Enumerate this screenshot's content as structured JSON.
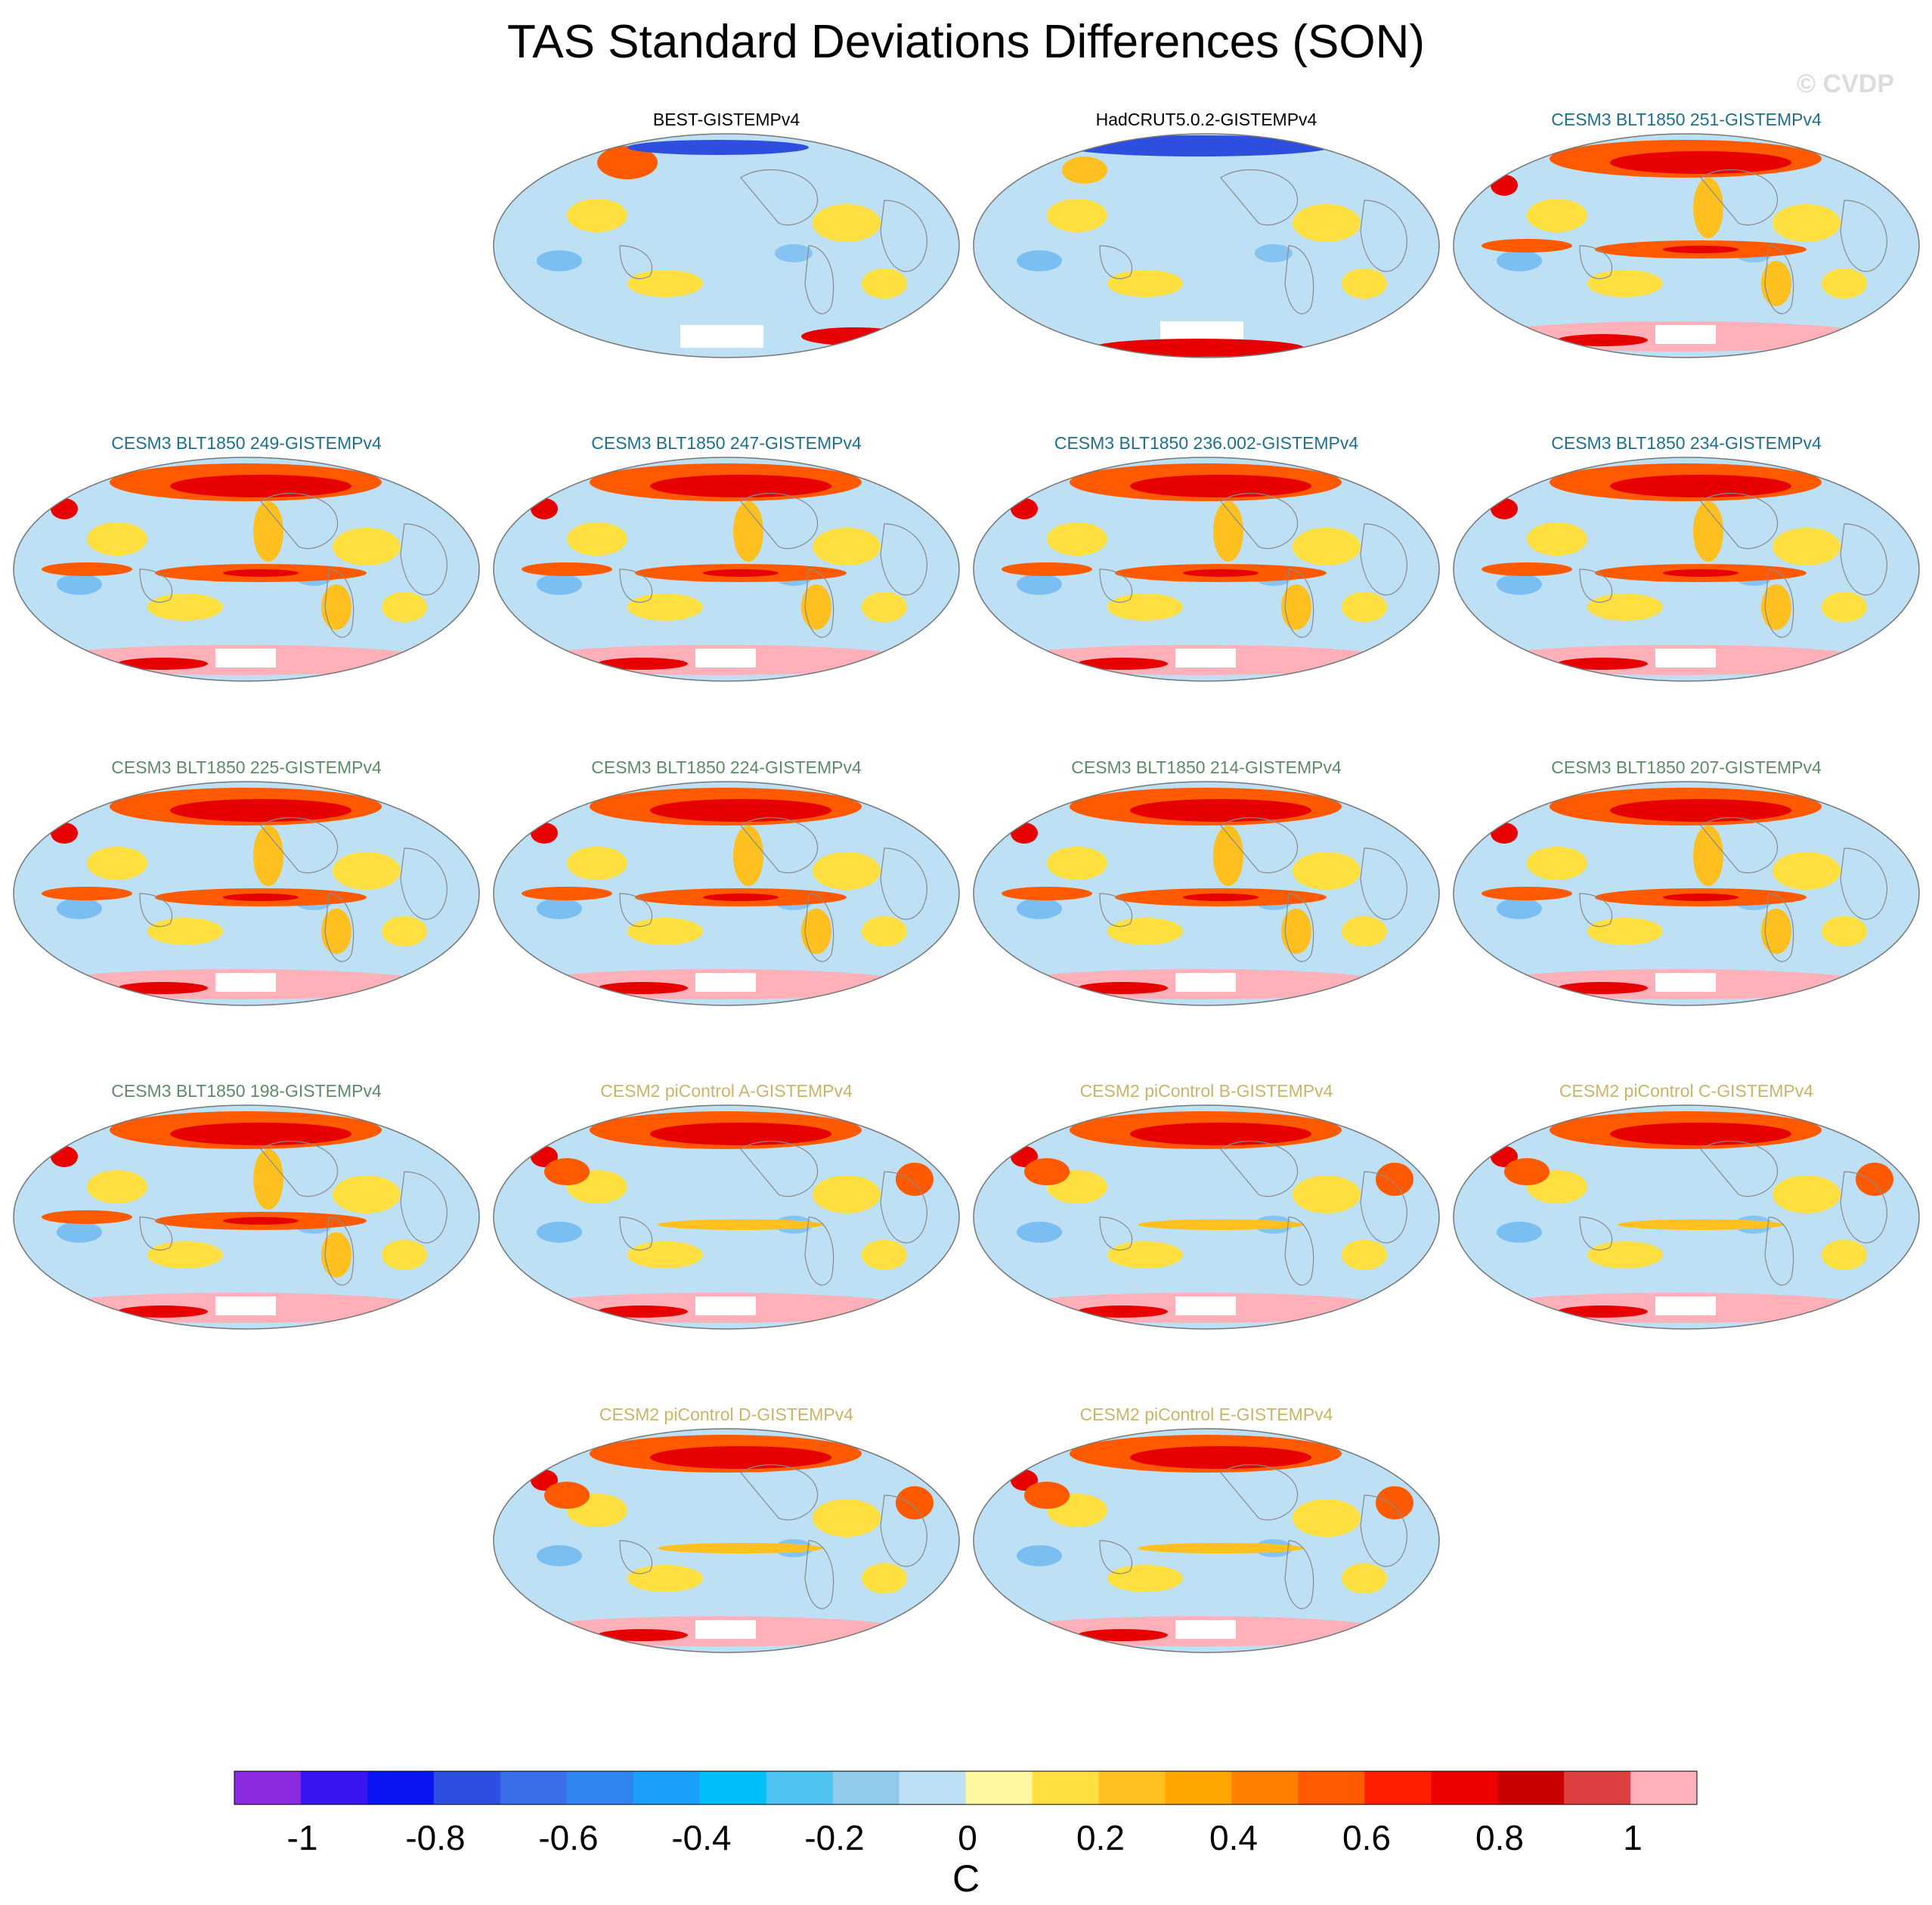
{
  "title": "TAS Standard Deviations Differences (SON)",
  "watermark": "© CVDP",
  "colors": {
    "obs_title": "#000000",
    "cesm3_title_a": "#1f6f8b",
    "cesm3_title_b": "#5f8a6a",
    "cesm2_title": "#c8b46a",
    "ocean_outline": "#8a8a8a"
  },
  "panels": [
    {
      "label": "BEST-GISTEMPv4",
      "title_color": "#000000",
      "style": "obs1"
    },
    {
      "label": "HadCRUT5.0.2-GISTEMPv4",
      "title_color": "#000000",
      "style": "obs2"
    },
    {
      "label": "CESM3 BLT1850 251-GISTEMPv4",
      "title_color": "#1f6f8b",
      "style": "cesm3"
    },
    {
      "label": "CESM3 BLT1850 249-GISTEMPv4",
      "title_color": "#1f6f8b",
      "style": "cesm3"
    },
    {
      "label": "CESM3 BLT1850 247-GISTEMPv4",
      "title_color": "#1f6f8b",
      "style": "cesm3"
    },
    {
      "label": "CESM3 BLT1850 236.002-GISTEMPv4",
      "title_color": "#1f6f8b",
      "style": "cesm3"
    },
    {
      "label": "CESM3 BLT1850 234-GISTEMPv4",
      "title_color": "#1f6f8b",
      "style": "cesm3"
    },
    {
      "label": "CESM3 BLT1850 225-GISTEMPv4",
      "title_color": "#5f8a6a",
      "style": "cesm3"
    },
    {
      "label": "CESM3 BLT1850 224-GISTEMPv4",
      "title_color": "#5f8a6a",
      "style": "cesm3"
    },
    {
      "label": "CESM3 BLT1850 214-GISTEMPv4",
      "title_color": "#5f8a6a",
      "style": "cesm3"
    },
    {
      "label": "CESM3 BLT1850 207-GISTEMPv4",
      "title_color": "#5f8a6a",
      "style": "cesm3"
    },
    {
      "label": "CESM3 BLT1850 198-GISTEMPv4",
      "title_color": "#5f8a6a",
      "style": "cesm3"
    },
    {
      "label": "CESM2 piControl A-GISTEMPv4",
      "title_color": "#c8b46a",
      "style": "cesm2"
    },
    {
      "label": "CESM2 piControl B-GISTEMPv4",
      "title_color": "#c8b46a",
      "style": "cesm2"
    },
    {
      "label": "CESM2 piControl C-GISTEMPv4",
      "title_color": "#c8b46a",
      "style": "cesm2"
    },
    {
      "label": "CESM2 piControl D-GISTEMPv4",
      "title_color": "#c8b46a",
      "style": "cesm2"
    },
    {
      "label": "CESM2 piControl E-GISTEMPv4",
      "title_color": "#c8b46a",
      "style": "cesm2"
    }
  ],
  "colorbar": {
    "unit": "C",
    "tick_labels": [
      "-1",
      "-0.8",
      "-0.6",
      "-0.4",
      "-0.2",
      "0",
      "0.2",
      "0.4",
      "0.6",
      "0.8",
      "1"
    ],
    "tick_values": [
      -1,
      -0.8,
      -0.6,
      -0.4,
      -0.2,
      0,
      0.2,
      0.4,
      0.6,
      0.8,
      1
    ],
    "colors": [
      "#8a2be2",
      "#3a14f0",
      "#0a14f0",
      "#2e4ee0",
      "#3a6ee8",
      "#2f86f2",
      "#1aa0f8",
      "#00bef8",
      "#4ec2f0",
      "#90cbec",
      "#bde0f4",
      "#fff7a0",
      "#ffe040",
      "#ffc020",
      "#ffa600",
      "#ff8000",
      "#ff5a00",
      "#ff2000",
      "#ee0000",
      "#c80000",
      "#dc4040",
      "#ffb0b8"
    ]
  },
  "chart_data": {
    "type": "heatmap",
    "title": "TAS Standard Deviations Differences (SON)",
    "colorbar_label": "C",
    "colorbar_ticks": [
      -1,
      -0.8,
      -0.6,
      -0.4,
      -0.2,
      0,
      0.2,
      0.4,
      0.6,
      0.8,
      1
    ],
    "panels": [
      "BEST-GISTEMPv4",
      "HadCRUT5.0.2-GISTEMPv4",
      "CESM3 BLT1850 251-GISTEMPv4",
      "CESM3 BLT1850 249-GISTEMPv4",
      "CESM3 BLT1850 247-GISTEMPv4",
      "CESM3 BLT1850 236.002-GISTEMPv4",
      "CESM3 BLT1850 234-GISTEMPv4",
      "CESM3 BLT1850 225-GISTEMPv4",
      "CESM3 BLT1850 224-GISTEMPv4",
      "CESM3 BLT1850 214-GISTEMPv4",
      "CESM3 BLT1850 207-GISTEMPv4",
      "CESM3 BLT1850 198-GISTEMPv4",
      "CESM2 piControl A-GISTEMPv4",
      "CESM2 piControl B-GISTEMPv4",
      "CESM2 piControl C-GISTEMPv4",
      "CESM2 piControl D-GISTEMPv4",
      "CESM2 piControl E-GISTEMPv4"
    ]
  }
}
